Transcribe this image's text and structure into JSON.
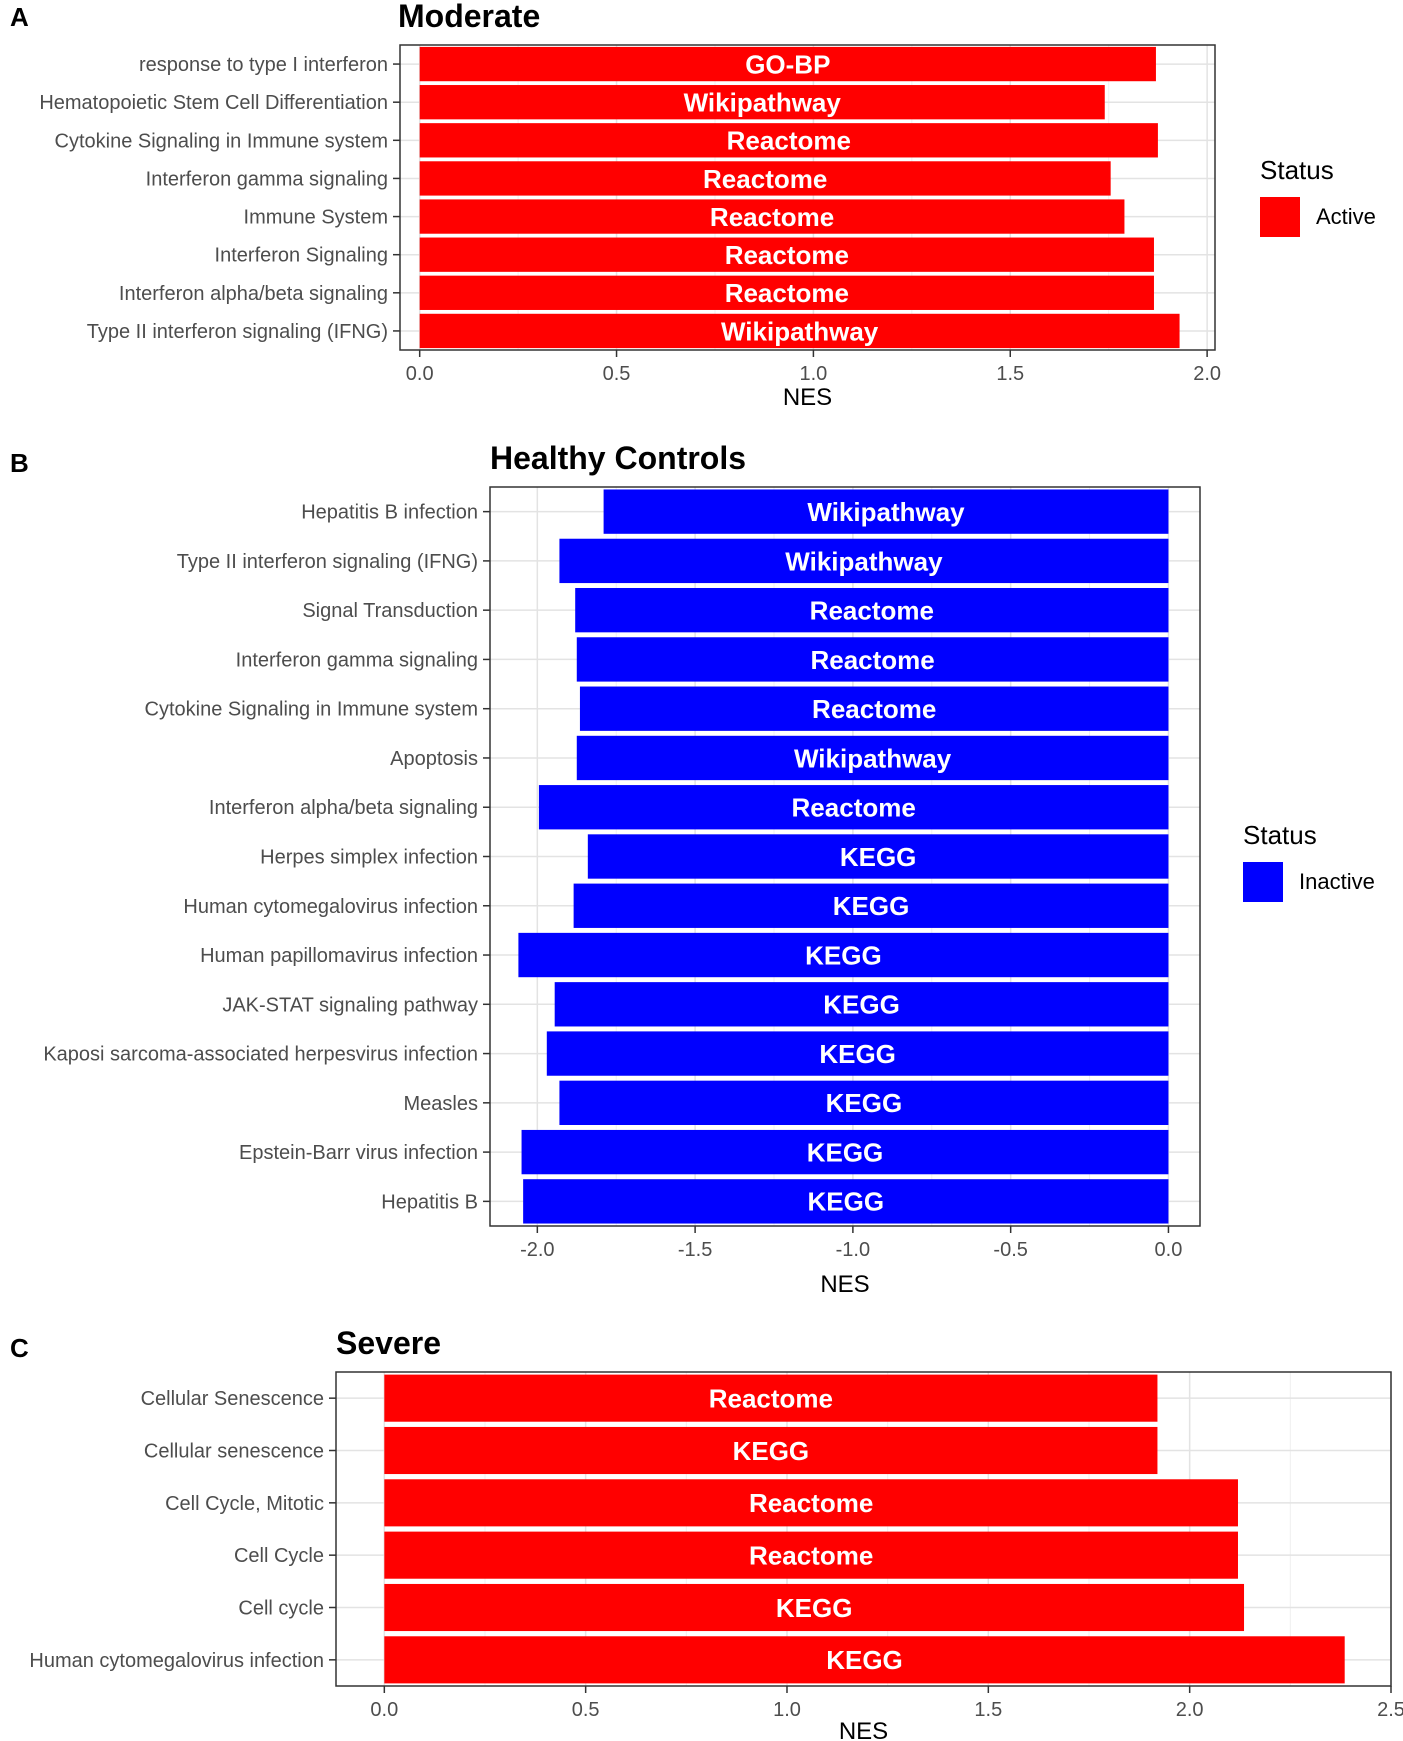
{
  "chart_data": [
    {
      "type": "bar",
      "orientation": "horizontal",
      "panel_label": "A",
      "title": "Moderate",
      "xlabel": "NES",
      "ylabel": "",
      "xlim": [
        -0.05,
        2.02
      ],
      "xticks": [
        0.0,
        0.5,
        1.0,
        1.5,
        2.0
      ],
      "xtick_labels": [
        "0.0",
        "0.5",
        "1.0",
        "1.5",
        "2.0"
      ],
      "grid": true,
      "bar_color": "#ff0000",
      "legend": {
        "title": "Status",
        "items": [
          {
            "label": "Active",
            "color": "#ff0000"
          }
        ],
        "placement": "right"
      },
      "categories": [
        "response to type I interferon",
        "Hematopoietic Stem Cell Differentiation",
        "Cytokine Signaling in Immune system",
        "Interferon gamma signaling",
        "Immune System",
        "Interferon Signaling",
        "Interferon alpha/beta signaling",
        "Type II interferon signaling (IFNG)"
      ],
      "values": [
        1.87,
        1.74,
        1.875,
        1.755,
        1.79,
        1.865,
        1.865,
        1.93
      ],
      "bar_labels": [
        "GO-BP",
        "Wikipathway",
        "Reactome",
        "Reactome",
        "Reactome",
        "Reactome",
        "Reactome",
        "Wikipathway"
      ]
    },
    {
      "type": "bar",
      "orientation": "horizontal",
      "panel_label": "B",
      "title": "Healthy Controls",
      "xlabel": "NES",
      "ylabel": "",
      "xlim": [
        -2.15,
        0.1
      ],
      "xticks": [
        -2.0,
        -1.5,
        -1.0,
        -0.5,
        0.0
      ],
      "xtick_labels": [
        "-2.0",
        "-1.5",
        "-1.0",
        "-0.5",
        "0.0"
      ],
      "grid": true,
      "bar_color": "#0000ff",
      "legend": {
        "title": "Status",
        "items": [
          {
            "label": "Inactive",
            "color": "#0000ff"
          }
        ],
        "placement": "right"
      },
      "categories": [
        "Hepatitis B infection",
        "Type II interferon signaling (IFNG)",
        "Signal Transduction",
        "Interferon gamma signaling",
        "Cytokine Signaling in Immune system",
        "Apoptosis",
        "Interferon alpha/beta signaling",
        "Herpes simplex infection",
        "Human cytomegalovirus infection",
        "Human papillomavirus infection",
        "JAK-STAT signaling pathway",
        "Kaposi sarcoma-associated herpesvirus infection",
        "Measles",
        "Epstein-Barr virus infection",
        "Hepatitis B"
      ],
      "values": [
        -1.79,
        -1.93,
        -1.88,
        -1.875,
        -1.865,
        -1.875,
        -1.995,
        -1.84,
        -1.885,
        -2.06,
        -1.945,
        -1.97,
        -1.93,
        -2.05,
        -2.045
      ],
      "bar_labels": [
        "Wikipathway",
        "Wikipathway",
        "Reactome",
        "Reactome",
        "Reactome",
        "Wikipathway",
        "Reactome",
        "KEGG",
        "KEGG",
        "KEGG",
        "KEGG",
        "KEGG",
        "KEGG",
        "KEGG",
        "KEGG"
      ]
    },
    {
      "type": "bar",
      "orientation": "horizontal",
      "panel_label": "C",
      "title": "Severe",
      "xlabel": "NES",
      "ylabel": "",
      "xlim": [
        -0.12,
        2.5
      ],
      "xticks": [
        0.0,
        0.5,
        1.0,
        1.5,
        2.0,
        2.5
      ],
      "xtick_labels": [
        "0.0",
        "0.5",
        "1.0",
        "1.5",
        "2.0",
        "2.5"
      ],
      "grid": true,
      "bar_color": "#ff0000",
      "legend": null,
      "categories": [
        "Cellular Senescence",
        "Cellular senescence",
        "Cell Cycle, Mitotic",
        "Cell Cycle",
        "Cell cycle",
        "Human cytomegalovirus infection"
      ],
      "values": [
        1.92,
        1.92,
        2.12,
        2.12,
        2.135,
        2.385
      ],
      "bar_labels": [
        "Reactome",
        "KEGG",
        "Reactome",
        "Reactome",
        "KEGG",
        "KEGG"
      ]
    }
  ]
}
